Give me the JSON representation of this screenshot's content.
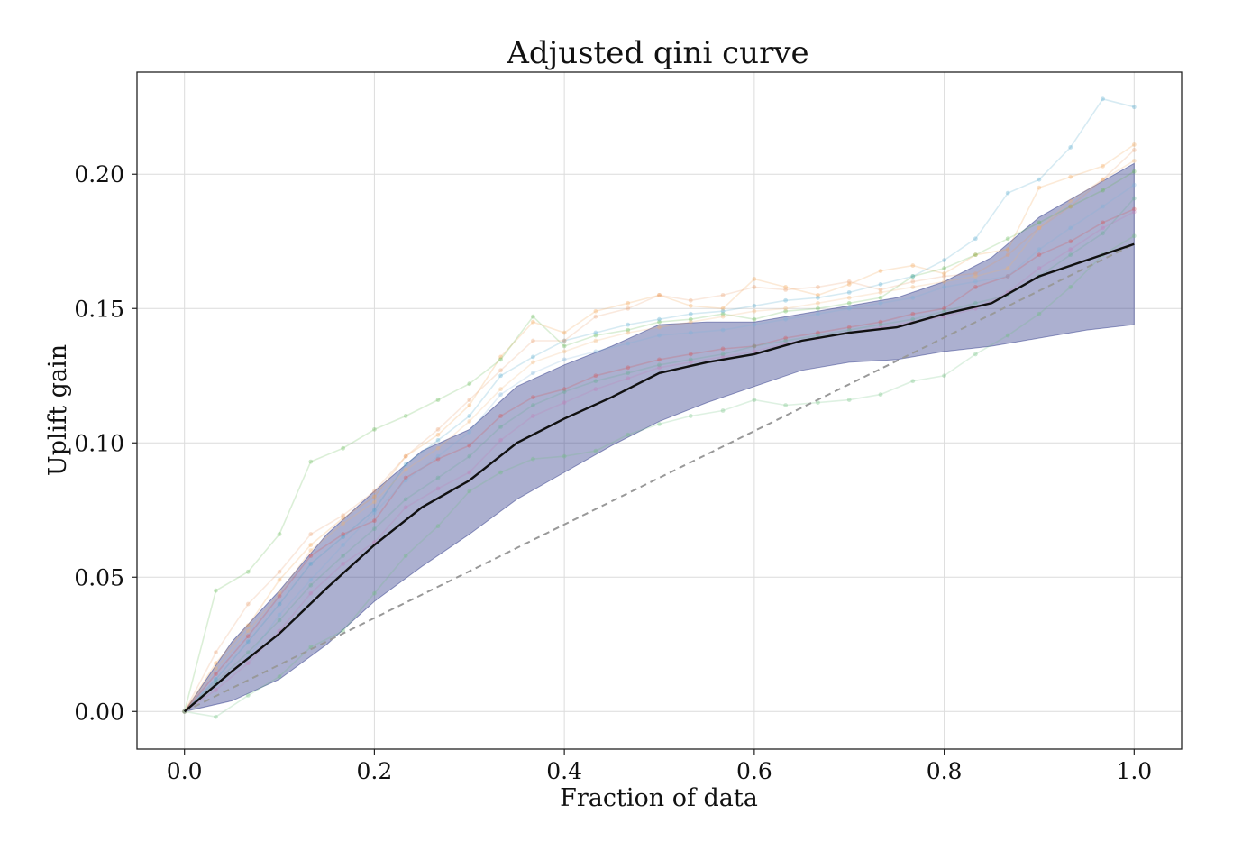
{
  "chart_data": {
    "type": "line",
    "title": "Adjusted qini curve",
    "xlabel": "Fraction of data",
    "ylabel": "Uplift gain",
    "xlim": [
      -0.05,
      1.05
    ],
    "ylim": [
      -0.014,
      0.238
    ],
    "xticks": [
      0.0,
      0.2,
      0.4,
      0.6,
      0.8,
      1.0
    ],
    "xtick_labels": [
      "0.0",
      "0.2",
      "0.4",
      "0.6",
      "0.8",
      "1.0"
    ],
    "yticks": [
      0.0,
      0.05,
      0.1,
      0.15,
      0.2
    ],
    "ytick_labels": [
      "0.00",
      "0.05",
      "0.10",
      "0.15",
      "0.20"
    ],
    "grid": true,
    "legend": "none",
    "x": [
      0.0,
      0.05,
      0.1,
      0.15,
      0.2,
      0.25,
      0.3,
      0.35,
      0.4,
      0.45,
      0.5,
      0.55,
      0.6,
      0.65,
      0.7,
      0.75,
      0.8,
      0.85,
      0.9,
      0.95,
      1.0
    ],
    "mean": {
      "color": "#111111",
      "values": [
        0.0,
        0.015,
        0.029,
        0.046,
        0.062,
        0.076,
        0.086,
        0.1,
        0.109,
        0.117,
        0.126,
        0.13,
        0.133,
        0.138,
        0.141,
        0.143,
        0.148,
        0.152,
        0.162,
        0.168,
        0.174
      ]
    },
    "band": {
      "color": "#2f3a8a",
      "opacity": 0.4,
      "upper": [
        0.0,
        0.026,
        0.045,
        0.066,
        0.082,
        0.097,
        0.105,
        0.121,
        0.129,
        0.136,
        0.144,
        0.145,
        0.145,
        0.148,
        0.151,
        0.154,
        0.16,
        0.169,
        0.184,
        0.194,
        0.204
      ],
      "lower": [
        0.0,
        0.004,
        0.012,
        0.025,
        0.041,
        0.054,
        0.066,
        0.079,
        0.089,
        0.099,
        0.108,
        0.115,
        0.121,
        0.127,
        0.13,
        0.131,
        0.134,
        0.136,
        0.139,
        0.142,
        0.144
      ]
    },
    "baseline": {
      "color": "#999999",
      "style": "dashed",
      "x": [
        0.0,
        1.0
      ],
      "y": [
        0.0,
        0.174
      ]
    },
    "individual_runs": {
      "opacity": 0.22,
      "series": [
        {
          "color": "#f2a04a",
          "x": [
            0.0,
            0.033,
            0.067,
            0.1,
            0.133,
            0.167,
            0.2,
            0.233,
            0.267,
            0.3,
            0.333,
            0.367,
            0.4,
            0.433,
            0.467,
            0.5,
            0.533,
            0.567,
            0.6,
            0.633,
            0.667,
            0.7,
            0.733,
            0.767,
            0.8,
            0.833,
            0.867,
            0.9,
            0.933,
            0.967,
            1.0
          ],
          "values": [
            0.0,
            0.018,
            0.032,
            0.049,
            0.062,
            0.072,
            0.08,
            0.095,
            0.103,
            0.114,
            0.132,
            0.145,
            0.141,
            0.149,
            0.152,
            0.155,
            0.151,
            0.15,
            0.161,
            0.158,
            0.155,
            0.159,
            0.164,
            0.166,
            0.163,
            0.17,
            0.172,
            0.195,
            0.199,
            0.203,
            0.211
          ]
        },
        {
          "color": "#5ab54a",
          "x": [
            0.0,
            0.033,
            0.067,
            0.1,
            0.133,
            0.167,
            0.2,
            0.233,
            0.267,
            0.3,
            0.333,
            0.367,
            0.4,
            0.433,
            0.467,
            0.5,
            0.533,
            0.567,
            0.6,
            0.633,
            0.667,
            0.7,
            0.733,
            0.767,
            0.8,
            0.833,
            0.867,
            0.9,
            0.933,
            0.967,
            1.0
          ],
          "values": [
            0.0,
            0.045,
            0.052,
            0.066,
            0.093,
            0.098,
            0.105,
            0.11,
            0.116,
            0.122,
            0.131,
            0.147,
            0.136,
            0.14,
            0.142,
            0.145,
            0.146,
            0.148,
            0.146,
            0.149,
            0.15,
            0.152,
            0.154,
            0.162,
            0.165,
            0.17,
            0.176,
            0.182,
            0.188,
            0.194,
            0.201
          ]
        },
        {
          "color": "#d94a4a",
          "x": [
            0.0,
            0.033,
            0.067,
            0.1,
            0.133,
            0.167,
            0.2,
            0.233,
            0.267,
            0.3,
            0.333,
            0.367,
            0.4,
            0.433,
            0.467,
            0.5,
            0.533,
            0.567,
            0.6,
            0.633,
            0.667,
            0.7,
            0.733,
            0.767,
            0.8,
            0.833,
            0.867,
            0.9,
            0.933,
            0.967,
            1.0
          ],
          "values": [
            0.0,
            0.014,
            0.028,
            0.043,
            0.058,
            0.066,
            0.071,
            0.087,
            0.094,
            0.099,
            0.11,
            0.117,
            0.12,
            0.125,
            0.128,
            0.131,
            0.133,
            0.135,
            0.136,
            0.139,
            0.141,
            0.143,
            0.145,
            0.148,
            0.15,
            0.158,
            0.162,
            0.17,
            0.175,
            0.182,
            0.187
          ]
        },
        {
          "color": "#4aa5c9",
          "x": [
            0.0,
            0.033,
            0.067,
            0.1,
            0.133,
            0.167,
            0.2,
            0.233,
            0.267,
            0.3,
            0.333,
            0.367,
            0.4,
            0.433,
            0.467,
            0.5,
            0.533,
            0.567,
            0.6,
            0.633,
            0.667,
            0.7,
            0.733,
            0.767,
            0.8,
            0.833,
            0.867,
            0.9,
            0.933,
            0.967,
            1.0
          ],
          "values": [
            0.0,
            0.012,
            0.026,
            0.04,
            0.055,
            0.065,
            0.075,
            0.092,
            0.101,
            0.11,
            0.125,
            0.132,
            0.138,
            0.141,
            0.144,
            0.146,
            0.148,
            0.149,
            0.151,
            0.153,
            0.154,
            0.156,
            0.159,
            0.162,
            0.168,
            0.176,
            0.193,
            0.198,
            0.21,
            0.228,
            0.225
          ]
        },
        {
          "color": "#e89a6a",
          "x": [
            0.0,
            0.033,
            0.067,
            0.1,
            0.133,
            0.167,
            0.2,
            0.233,
            0.267,
            0.3,
            0.333,
            0.367,
            0.4,
            0.433,
            0.467,
            0.5,
            0.533,
            0.567,
            0.6,
            0.633,
            0.667,
            0.7,
            0.733,
            0.767,
            0.8,
            0.833,
            0.867,
            0.9,
            0.933,
            0.967,
            1.0
          ],
          "values": [
            0.0,
            0.022,
            0.04,
            0.052,
            0.066,
            0.073,
            0.082,
            0.095,
            0.105,
            0.116,
            0.127,
            0.138,
            0.138,
            0.147,
            0.15,
            0.155,
            0.153,
            0.155,
            0.158,
            0.157,
            0.158,
            0.16,
            0.157,
            0.16,
            0.162,
            0.163,
            0.17,
            0.18,
            0.188,
            0.198,
            0.209
          ]
        },
        {
          "color": "#6abf7a",
          "x": [
            0.0,
            0.033,
            0.067,
            0.1,
            0.133,
            0.167,
            0.2,
            0.233,
            0.267,
            0.3,
            0.333,
            0.367,
            0.4,
            0.433,
            0.467,
            0.5,
            0.533,
            0.567,
            0.6,
            0.633,
            0.667,
            0.7,
            0.733,
            0.767,
            0.8,
            0.833,
            0.867,
            0.9,
            0.933,
            0.967,
            1.0
          ],
          "values": [
            0.0,
            -0.002,
            0.006,
            0.013,
            0.024,
            0.03,
            0.044,
            0.058,
            0.069,
            0.082,
            0.089,
            0.094,
            0.095,
            0.097,
            0.103,
            0.107,
            0.11,
            0.112,
            0.116,
            0.114,
            0.115,
            0.116,
            0.118,
            0.123,
            0.125,
            0.133,
            0.14,
            0.148,
            0.158,
            0.17,
            0.177
          ]
        },
        {
          "color": "#c47ab5",
          "x": [
            0.0,
            0.033,
            0.067,
            0.1,
            0.133,
            0.167,
            0.2,
            0.233,
            0.267,
            0.3,
            0.333,
            0.367,
            0.4,
            0.433,
            0.467,
            0.5,
            0.533,
            0.567,
            0.6,
            0.633,
            0.667,
            0.7,
            0.733,
            0.767,
            0.8,
            0.833,
            0.867,
            0.9,
            0.933,
            0.967,
            1.0
          ],
          "values": [
            0.0,
            0.008,
            0.018,
            0.03,
            0.044,
            0.055,
            0.063,
            0.076,
            0.083,
            0.089,
            0.101,
            0.11,
            0.115,
            0.12,
            0.124,
            0.128,
            0.13,
            0.132,
            0.134,
            0.137,
            0.139,
            0.141,
            0.143,
            0.145,
            0.147,
            0.15,
            0.156,
            0.165,
            0.172,
            0.18,
            0.186
          ]
        },
        {
          "color": "#7ab2d9",
          "x": [
            0.0,
            0.033,
            0.067,
            0.1,
            0.133,
            0.167,
            0.2,
            0.233,
            0.267,
            0.3,
            0.333,
            0.367,
            0.4,
            0.433,
            0.467,
            0.5,
            0.533,
            0.567,
            0.6,
            0.633,
            0.667,
            0.7,
            0.733,
            0.767,
            0.8,
            0.833,
            0.867,
            0.9,
            0.933,
            0.967,
            1.0
          ],
          "values": [
            0.0,
            0.01,
            0.02,
            0.036,
            0.049,
            0.062,
            0.074,
            0.086,
            0.095,
            0.104,
            0.118,
            0.126,
            0.131,
            0.134,
            0.137,
            0.14,
            0.141,
            0.142,
            0.144,
            0.146,
            0.148,
            0.15,
            0.152,
            0.154,
            0.158,
            0.16,
            0.162,
            0.172,
            0.18,
            0.188,
            0.196
          ]
        },
        {
          "color": "#f0b070",
          "x": [
            0.0,
            0.033,
            0.067,
            0.1,
            0.133,
            0.167,
            0.2,
            0.233,
            0.267,
            0.3,
            0.333,
            0.367,
            0.4,
            0.433,
            0.467,
            0.5,
            0.533,
            0.567,
            0.6,
            0.633,
            0.667,
            0.7,
            0.733,
            0.767,
            0.8,
            0.833,
            0.867,
            0.9,
            0.933,
            0.967,
            1.0
          ],
          "values": [
            0.0,
            0.016,
            0.03,
            0.044,
            0.06,
            0.07,
            0.078,
            0.09,
            0.098,
            0.108,
            0.12,
            0.13,
            0.134,
            0.138,
            0.141,
            0.143,
            0.145,
            0.147,
            0.149,
            0.15,
            0.152,
            0.154,
            0.156,
            0.158,
            0.16,
            0.162,
            0.165,
            0.18,
            0.19,
            0.198,
            0.205
          ]
        },
        {
          "color": "#5fae8f",
          "x": [
            0.0,
            0.033,
            0.067,
            0.1,
            0.133,
            0.167,
            0.2,
            0.233,
            0.267,
            0.3,
            0.333,
            0.367,
            0.4,
            0.433,
            0.467,
            0.5,
            0.533,
            0.567,
            0.6,
            0.633,
            0.667,
            0.7,
            0.733,
            0.767,
            0.8,
            0.833,
            0.867,
            0.9,
            0.933,
            0.967,
            1.0
          ],
          "values": [
            0.0,
            0.011,
            0.022,
            0.034,
            0.047,
            0.058,
            0.068,
            0.079,
            0.087,
            0.095,
            0.106,
            0.114,
            0.119,
            0.123,
            0.126,
            0.129,
            0.131,
            0.133,
            0.136,
            0.138,
            0.14,
            0.142,
            0.144,
            0.146,
            0.149,
            0.152,
            0.155,
            0.162,
            0.17,
            0.178,
            0.191
          ]
        }
      ]
    }
  }
}
